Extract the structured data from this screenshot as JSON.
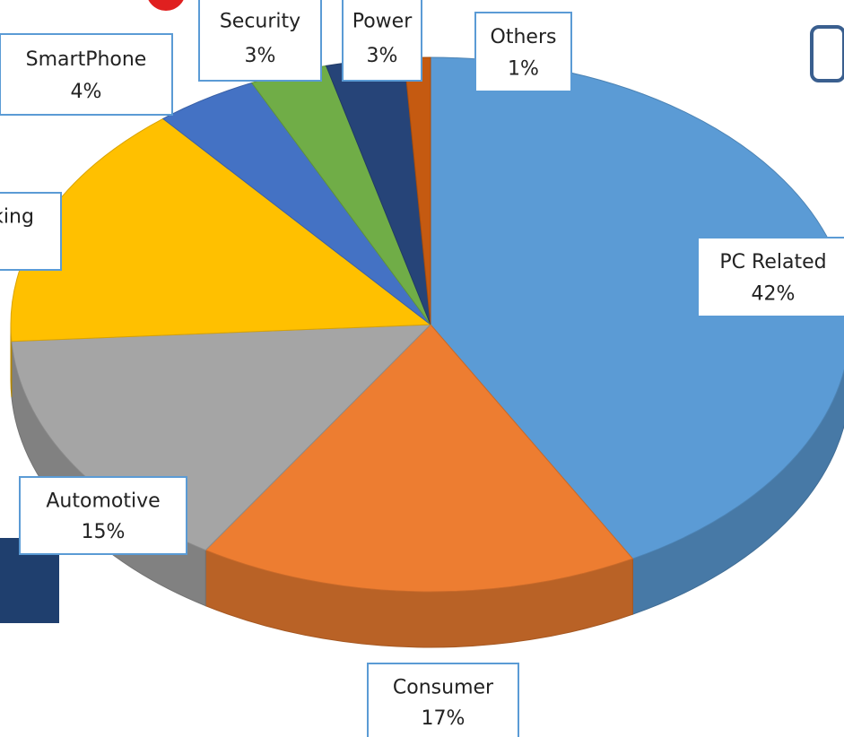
{
  "chart_data": {
    "type": "pie",
    "categories": [
      "PC Related",
      "Consumer",
      "Automotive",
      "Networking",
      "SmartPhone",
      "Security",
      "Power",
      "Others"
    ],
    "values": [
      42,
      17,
      15,
      15,
      4,
      3,
      3,
      1
    ],
    "value_labels": [
      "42%",
      "17%",
      "15%",
      "15%",
      "4%",
      "3%",
      "3%",
      "1%"
    ],
    "colors": [
      "#5b9bd5",
      "#ed7d31",
      "#a5a5a5",
      "#ffc000",
      "#4472c4",
      "#70ad47",
      "#264478",
      "#c55a11"
    ]
  }
}
